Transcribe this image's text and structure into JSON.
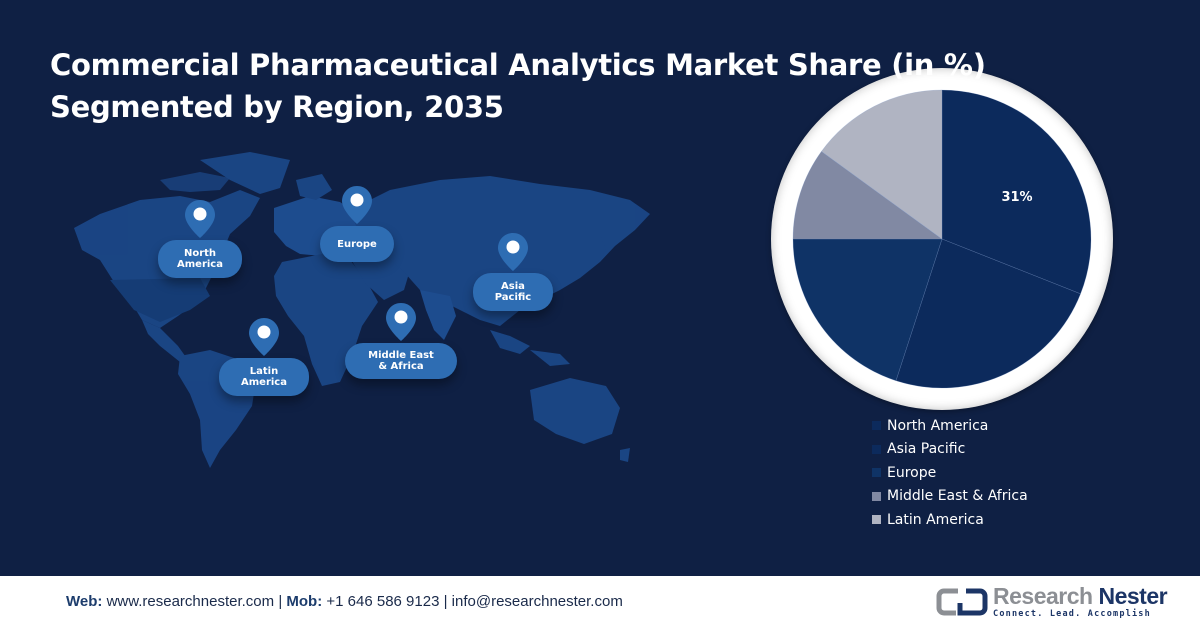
{
  "title": {
    "line1": "Commercial Pharmaceutical Analytics Market Share (in %)",
    "line2": "Segmented by Region, 2035"
  },
  "map": {
    "pins": [
      {
        "label": "North\nAmerica",
        "icon": "location-pin-icon"
      },
      {
        "label": "Europe",
        "icon": "location-pin-icon"
      },
      {
        "label": "Asia\nPacific",
        "icon": "location-pin-icon"
      },
      {
        "label": "Latin\nAmerica",
        "icon": "location-pin-icon"
      },
      {
        "label": "Middle East\n& Africa",
        "icon": "location-pin-icon"
      }
    ]
  },
  "colors": {
    "background": "#0f2044",
    "north_america": "#0c2a5c",
    "asia_pacific": "#0c2a5c",
    "europe": "#0f3366",
    "middle_east_africa": "#8189a3",
    "latin_america": "#b0b4c2",
    "pin": "#2e6db3"
  },
  "chart_data": {
    "type": "pie",
    "title": "Commercial Pharmaceutical Analytics Market Share (in %) Segmented by Region, 2035",
    "categories": [
      "North America",
      "Asia Pacific",
      "Europe",
      "Middle East & Africa",
      "Latin America"
    ],
    "values": [
      31,
      24,
      20,
      10,
      15
    ],
    "unit": "%",
    "data_labels": [
      {
        "category": "North America",
        "text": "31%"
      }
    ],
    "start_angle": "12 o'clock, clockwise",
    "legend_position": "bottom-right"
  },
  "pie": {
    "label": "31%"
  },
  "legend": {
    "items": [
      {
        "label": "North America",
        "color": "#0c2a5c"
      },
      {
        "label": "Asia Pacific",
        "color": "#0c2a5c"
      },
      {
        "label": "Europe",
        "color": "#0f3366"
      },
      {
        "label": "Middle East & Africa",
        "color": "#8189a3"
      },
      {
        "label": "Latin America",
        "color": "#b0b4c2"
      }
    ]
  },
  "footer": {
    "web_label": "Web:",
    "web": "www.researchnester.com",
    "sep": "|",
    "mob_label": "Mob:",
    "mob": "+1 646 586 9123",
    "email": "info@researchnester.com",
    "logo": {
      "name_part1": "Research",
      "name_part2": "Nester",
      "tagline": "Connect. Lead. Accomplish"
    }
  }
}
